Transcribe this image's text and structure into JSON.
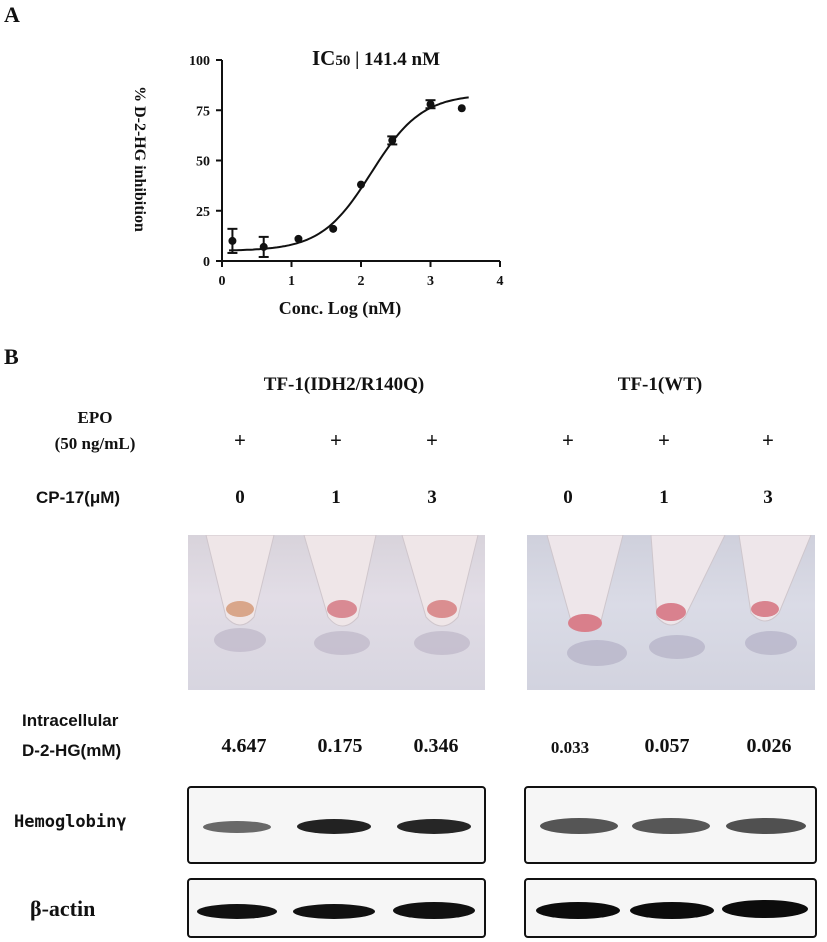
{
  "panel_a": {
    "label": "A",
    "ic50_label": "IC",
    "ic50_sub": "50",
    "ic50_value": "| 141.4 nM",
    "ylabel": "% D-2-HG inhibition",
    "xlabel": "Conc. Log (nM)"
  },
  "chart_data": {
    "type": "scatter",
    "title": "IC50 | 141.4 nM",
    "xlabel": "Conc. Log (nM)",
    "ylabel": "% D-2-HG inhibition",
    "xlim": [
      0,
      4
    ],
    "ylim": [
      0,
      100
    ],
    "xticks": [
      "0",
      "1",
      "2",
      "3",
      "4"
    ],
    "yticks": [
      "0",
      "25",
      "50",
      "75",
      "100"
    ],
    "points": [
      {
        "x": 0.15,
        "y": 10,
        "err": 6
      },
      {
        "x": 0.6,
        "y": 7,
        "err": 5
      },
      {
        "x": 1.1,
        "y": 11,
        "err": 0
      },
      {
        "x": 1.6,
        "y": 16,
        "err": 0
      },
      {
        "x": 2.0,
        "y": 38,
        "err": 0
      },
      {
        "x": 2.45,
        "y": 60,
        "err": 2
      },
      {
        "x": 3.0,
        "y": 78,
        "err": 2
      },
      {
        "x": 3.45,
        "y": 76,
        "err": 0
      }
    ],
    "fit": {
      "bottom": 5,
      "top": 83,
      "logIC50": 2.15,
      "hill": 1.2
    },
    "grid": false,
    "legend": "none"
  },
  "panel_b": {
    "label": "B",
    "groups": [
      "TF-1(IDH2/R140Q)",
      "TF-1(WT)"
    ],
    "epo_label_line1": "EPO",
    "epo_label_line2": "(50 ng/mL)",
    "epo_values": [
      "+",
      "+",
      "+",
      "+",
      "+",
      "+"
    ],
    "cp17_label": "CP-17(μM)",
    "cp17_values": [
      "0",
      "1",
      "3",
      "0",
      "1",
      "3"
    ],
    "hg_label_line1": "Intracellular",
    "hg_label_line2": "D-2-HG(mM)",
    "hg_values": [
      "4.647",
      "0.175",
      "0.346",
      "0.033",
      "0.057",
      "0.026"
    ],
    "blots": [
      "Hemoglobinγ",
      "β-actin"
    ]
  }
}
